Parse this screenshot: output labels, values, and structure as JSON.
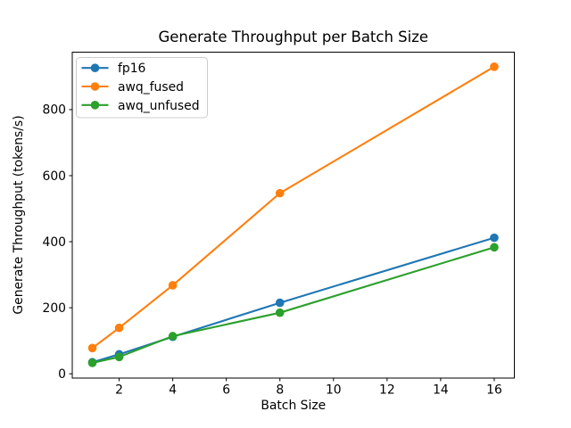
{
  "chart_data": {
    "type": "line",
    "title": "Generate Throughput per Batch Size",
    "xlabel": "Batch Size",
    "ylabel": "Generate Throughput (tokens/s)",
    "x": [
      1,
      2,
      4,
      8,
      16
    ],
    "series": [
      {
        "name": "fp16",
        "color": "#1f77b4",
        "marker": "o",
        "values": [
          35,
          59,
          112,
          215,
          412
        ]
      },
      {
        "name": "awq_fused",
        "color": "#ff7f0e",
        "marker": "o",
        "values": [
          78,
          139,
          268,
          547,
          930
        ]
      },
      {
        "name": "awq_unfused",
        "color": "#2ca02c",
        "marker": "o",
        "values": [
          33,
          51,
          114,
          185,
          383
        ]
      }
    ],
    "xticks": [
      2,
      4,
      6,
      8,
      10,
      12,
      14,
      16
    ],
    "yticks": [
      0,
      200,
      400,
      600,
      800
    ],
    "xlim": [
      0.25,
      16.75
    ],
    "ylim": [
      -13,
      974
    ],
    "grid": false,
    "legend_position": "upper left",
    "legend_border_color": "#cccccc",
    "axes_color": "#000000",
    "background": "#ffffff"
  }
}
